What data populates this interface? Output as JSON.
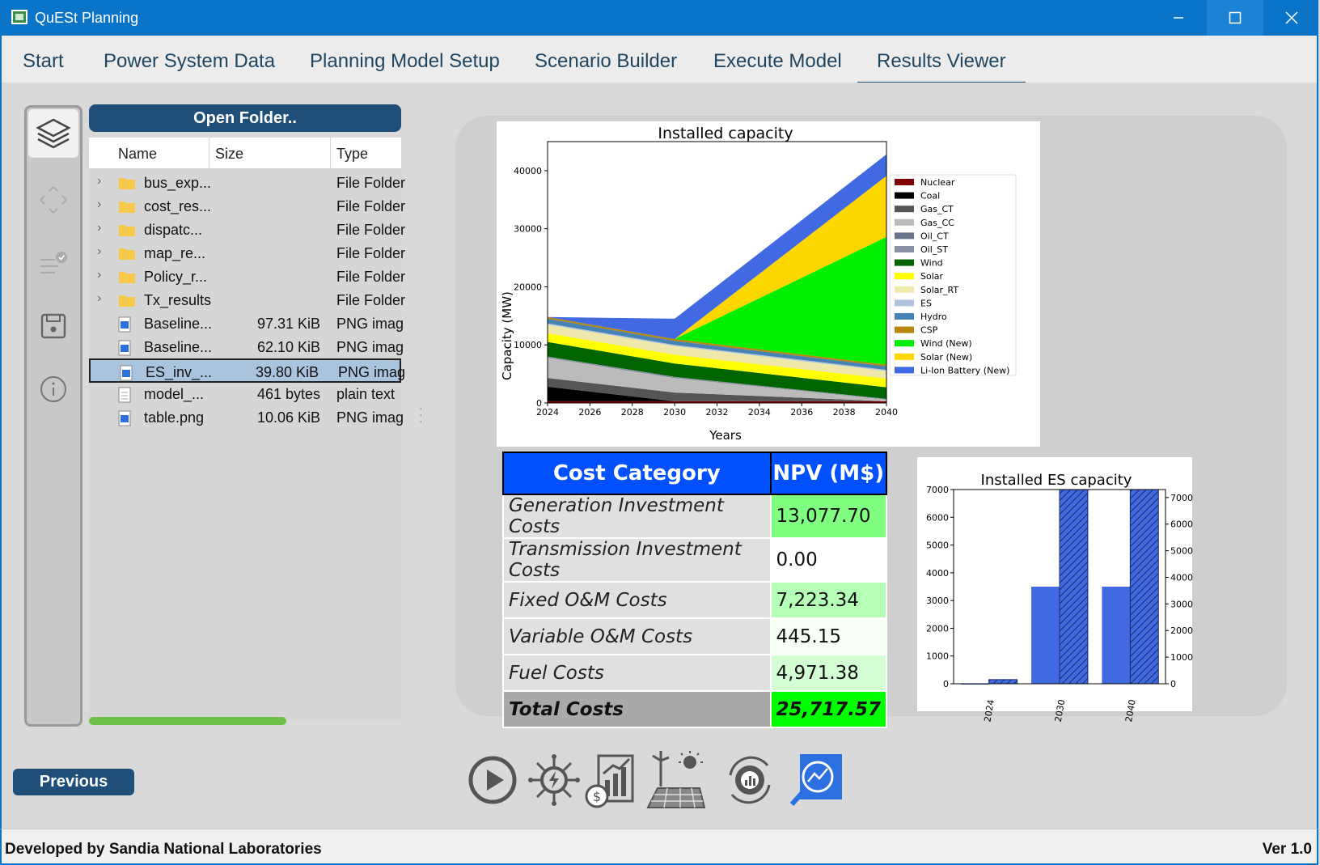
{
  "window": {
    "title": "QuESt Planning"
  },
  "tabs": [
    {
      "label": "Start"
    },
    {
      "label": "Power System Data"
    },
    {
      "label": "Planning Model Setup"
    },
    {
      "label": "Scenario Builder"
    },
    {
      "label": "Execute Model"
    },
    {
      "label": "Results Viewer",
      "active": true
    }
  ],
  "sidebar": {
    "icons": [
      "layers-icon",
      "move-icon",
      "checklist-icon",
      "save-icon",
      "info-icon"
    ]
  },
  "file_browser": {
    "open_folder_label": "Open Folder..",
    "columns": [
      "Name",
      "Size",
      "Type"
    ],
    "rows": [
      {
        "name": "bus_exp...",
        "size": "",
        "type": "File Folder",
        "kind": "folder"
      },
      {
        "name": "cost_res...",
        "size": "",
        "type": "File Folder",
        "kind": "folder"
      },
      {
        "name": "dispatc...",
        "size": "",
        "type": "File Folder",
        "kind": "folder"
      },
      {
        "name": "map_re...",
        "size": "",
        "type": "File Folder",
        "kind": "folder"
      },
      {
        "name": "Policy_r...",
        "size": "",
        "type": "File Folder",
        "kind": "folder"
      },
      {
        "name": "Tx_results",
        "size": "",
        "type": "File Folder",
        "kind": "folder"
      },
      {
        "name": "Baseline...",
        "size": "97.31 KiB",
        "type": "PNG imag",
        "kind": "png"
      },
      {
        "name": "Baseline...",
        "size": "62.10 KiB",
        "type": "PNG imag",
        "kind": "png"
      },
      {
        "name": "ES_inv_...",
        "size": "39.80 KiB",
        "type": "PNG imag",
        "kind": "png",
        "selected": true
      },
      {
        "name": "model_...",
        "size": "461 bytes",
        "type": "plain text",
        "kind": "text"
      },
      {
        "name": "table.png",
        "size": "10.06 KiB",
        "type": "PNG imag",
        "kind": "png"
      }
    ]
  },
  "cost_table": {
    "headers": [
      "Cost Category",
      "NPV (M$)"
    ],
    "rows": [
      {
        "category": "Generation Investment Costs",
        "value": "13,077.70",
        "color": "#80ff80"
      },
      {
        "category": "Transmission Investment Costs",
        "value": "0.00",
        "color": "#ffffff"
      },
      {
        "category": "Fixed O&M Costs",
        "value": "7,223.34",
        "color": "#b6ffb6"
      },
      {
        "category": "Variable O&M Costs",
        "value": "445.15",
        "color": "#f7fff7"
      },
      {
        "category": "Fuel Costs",
        "value": "4,971.38",
        "color": "#d4ffd4"
      },
      {
        "category": "Total Costs",
        "value": "25,717.57",
        "color": "#00ff00",
        "total": true
      }
    ]
  },
  "chart_data": [
    {
      "type": "area",
      "title": "Installed capacity",
      "xlabel": "Years",
      "ylabel": "Capacity (MW)",
      "x": [
        2024,
        2030,
        2040
      ],
      "xticks": [
        2024,
        2026,
        2028,
        2030,
        2032,
        2034,
        2036,
        2038,
        2040
      ],
      "yticks": [
        0,
        10000,
        20000,
        30000,
        40000
      ],
      "xlim": [
        2024,
        2040
      ],
      "ylim": [
        0,
        45000
      ],
      "legend_position": "right",
      "series": [
        {
          "name": "Nuclear",
          "color": "#800000",
          "values": [
            300,
            300,
            300
          ]
        },
        {
          "name": "Coal",
          "color": "#000000",
          "values": [
            2500,
            0,
            0
          ]
        },
        {
          "name": "Gas_CT",
          "color": "#555555",
          "values": [
            1500,
            1500,
            0
          ]
        },
        {
          "name": "Gas_CC",
          "color": "#bbbbbb",
          "values": [
            3500,
            2500,
            300
          ]
        },
        {
          "name": "Oil_CT",
          "color": "#66758a",
          "values": [
            100,
            100,
            50
          ]
        },
        {
          "name": "Oil_ST",
          "color": "#8a93a3",
          "values": [
            100,
            100,
            50
          ]
        },
        {
          "name": "Wind",
          "color": "#006400",
          "values": [
            2500,
            2300,
            2000
          ]
        },
        {
          "name": "Solar",
          "color": "#ffff00",
          "values": [
            1500,
            1500,
            1500
          ]
        },
        {
          "name": "Solar_RT",
          "color": "#eee8aa",
          "values": [
            1500,
            1500,
            1300
          ]
        },
        {
          "name": "ES",
          "color": "#b0c4de",
          "values": [
            200,
            200,
            200
          ]
        },
        {
          "name": "Hydro",
          "color": "#4682b4",
          "values": [
            800,
            700,
            600
          ]
        },
        {
          "name": "CSP",
          "color": "#b8860b",
          "values": [
            300,
            300,
            300
          ]
        },
        {
          "name": "Wind (New)",
          "color": "#00ee00",
          "values": [
            0,
            0,
            22000
          ]
        },
        {
          "name": "Solar (New)",
          "color": "#ffd700",
          "values": [
            0,
            0,
            10500
          ]
        },
        {
          "name": "Li-Ion Battery (New)",
          "color": "#4169e1",
          "values": [
            0,
            3500,
            3700
          ]
        }
      ]
    },
    {
      "type": "bar",
      "title": "Installed ES capacity",
      "categories": [
        "2024",
        "2030",
        "2040"
      ],
      "ylim_left": [
        0,
        7000
      ],
      "yticks_left": [
        0,
        1000,
        2000,
        3000,
        4000,
        5000,
        6000,
        7000
      ],
      "ylim_right": [
        0,
        7000
      ],
      "yticks_right": [
        0,
        1000,
        2000,
        3000,
        4000,
        5000,
        6000,
        7000
      ],
      "series": [
        {
          "values": [
            0,
            3500,
            3500
          ],
          "color": "#4169e1",
          "hatch": false
        },
        {
          "values": [
            150,
            7000,
            7000
          ],
          "color": "#4169e1",
          "hatch": true
        }
      ]
    }
  ],
  "navigation": {
    "previous_label": "Previous"
  },
  "bottom_toolbar": {
    "icons": [
      "play-icon",
      "power-network-icon",
      "finance-chart-icon",
      "energy-sources-icon",
      "gear-cycle-icon",
      "analysis-search-icon"
    ]
  },
  "footer": {
    "left": "Developed by Sandia National Laboratories",
    "right": "Ver 1.0"
  }
}
